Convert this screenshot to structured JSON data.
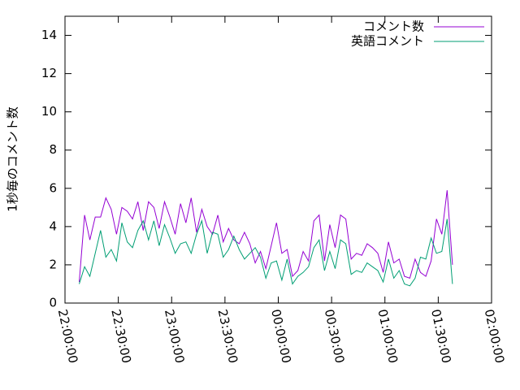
{
  "chart_data": {
    "type": "line",
    "ylabel": "1秒毎のコメント数",
    "x": [
      "22:08:00",
      "22:11:00",
      "22:14:00",
      "22:17:00",
      "22:20:00",
      "22:23:00",
      "22:26:00",
      "22:29:00",
      "22:32:00",
      "22:35:00",
      "22:38:00",
      "22:41:00",
      "22:44:00",
      "22:47:00",
      "22:50:00",
      "22:53:00",
      "22:56:00",
      "22:59:00",
      "23:02:00",
      "23:05:00",
      "23:08:00",
      "23:11:00",
      "23:14:00",
      "23:17:00",
      "23:20:00",
      "23:23:00",
      "23:26:00",
      "23:29:00",
      "23:32:00",
      "23:35:00",
      "23:38:00",
      "23:41:00",
      "23:44:00",
      "23:47:00",
      "23:50:00",
      "23:53:00",
      "23:56:00",
      "23:59:00",
      "00:02:00",
      "00:05:00",
      "00:08:00",
      "00:11:00",
      "00:14:00",
      "00:17:00",
      "00:20:00",
      "00:23:00",
      "00:26:00",
      "00:29:00",
      "00:32:00",
      "00:35:00",
      "00:38:00",
      "00:41:00",
      "00:44:00",
      "00:47:00",
      "00:50:00",
      "00:53:00",
      "00:56:00",
      "00:59:00",
      "01:02:00",
      "01:05:00",
      "01:08:00",
      "01:11:00",
      "01:14:00",
      "01:17:00",
      "01:20:00",
      "01:23:00",
      "01:26:00",
      "01:29:00",
      "01:32:00",
      "01:35:00",
      "01:38:00"
    ],
    "series": [
      {
        "name": "コメント数",
        "color": "#9400d3",
        "values": [
          1.1,
          4.6,
          3.3,
          4.5,
          4.5,
          5.5,
          4.9,
          3.6,
          5.0,
          4.8,
          4.4,
          5.3,
          3.8,
          5.3,
          5.0,
          3.9,
          5.3,
          4.5,
          3.6,
          5.2,
          4.2,
          5.5,
          3.7,
          4.9,
          4.0,
          3.6,
          4.6,
          3.2,
          3.9,
          3.3,
          3.1,
          3.7,
          3.1,
          2.1,
          2.7,
          1.8,
          3.0,
          4.2,
          2.6,
          2.8,
          1.4,
          1.7,
          2.7,
          2.2,
          4.3,
          4.6,
          2.2,
          4.1,
          2.9,
          4.6,
          4.4,
          2.3,
          2.6,
          2.5,
          3.1,
          2.9,
          2.6,
          1.6,
          3.2,
          2.1,
          2.3,
          1.4,
          1.3,
          2.3,
          1.6,
          1.4,
          2.2,
          4.4,
          3.6,
          5.9,
          2.0
        ]
      },
      {
        "name": "英語コメント",
        "color": "#009e73",
        "values": [
          1.0,
          1.9,
          1.4,
          2.6,
          3.8,
          2.4,
          2.8,
          2.2,
          4.2,
          3.2,
          2.9,
          3.8,
          4.3,
          3.3,
          4.3,
          3.0,
          4.1,
          3.4,
          2.6,
          3.1,
          3.2,
          2.6,
          3.6,
          4.3,
          2.6,
          3.7,
          3.6,
          2.4,
          2.8,
          3.5,
          2.8,
          2.3,
          2.6,
          2.9,
          2.4,
          1.3,
          2.1,
          2.2,
          1.2,
          2.3,
          1.0,
          1.4,
          1.6,
          1.9,
          2.9,
          3.3,
          1.7,
          2.7,
          1.8,
          3.3,
          3.1,
          1.5,
          1.7,
          1.6,
          2.1,
          1.9,
          1.7,
          1.1,
          2.3,
          1.3,
          1.7,
          1.0,
          0.9,
          1.3,
          2.4,
          2.3,
          3.4,
          2.6,
          2.7,
          4.4,
          1.0
        ]
      }
    ],
    "xlim": [
      "22:00:00",
      "02:00:00"
    ],
    "xticks": [
      "22:00:00",
      "22:30:00",
      "23:00:00",
      "23:30:00",
      "00:00:00",
      "00:30:00",
      "01:00:00",
      "01:30:00",
      "02:00:00"
    ],
    "ylim": [
      0,
      15
    ],
    "yticks": [
      0,
      2,
      4,
      6,
      8,
      10,
      12,
      14
    ],
    "legend": "upper right"
  }
}
